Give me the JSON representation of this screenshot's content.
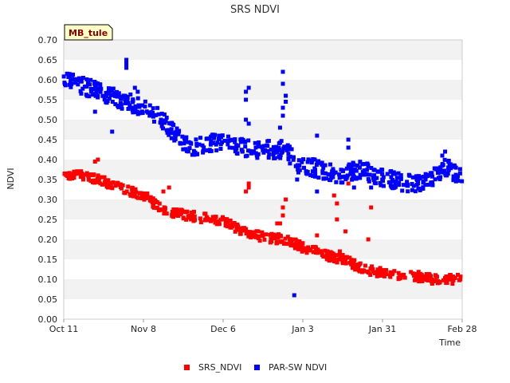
{
  "chart_data": {
    "type": "scatter",
    "title": "SRS NDVI",
    "site_tag": "MB_tule",
    "xlabel": "Time",
    "ylabel": "NDVI",
    "ylim": [
      0,
      0.7
    ],
    "xlim_days": [
      0,
      140
    ],
    "y_ticks": [
      "0.00",
      "0.05",
      "0.10",
      "0.15",
      "0.20",
      "0.25",
      "0.30",
      "0.35",
      "0.40",
      "0.45",
      "0.50",
      "0.55",
      "0.60",
      "0.65",
      "0.70"
    ],
    "x_ticks": [
      {
        "label": "Oct 11",
        "day": 0
      },
      {
        "label": "Nov 8",
        "day": 28
      },
      {
        "label": "Dec 6",
        "day": 56
      },
      {
        "label": "Jan 3",
        "day": 84
      },
      {
        "label": "Jan 31",
        "day": 112
      },
      {
        "label": "Feb 28",
        "day": 140
      }
    ],
    "grid": "horizontal alternating bands",
    "legend_position": "bottom-center",
    "series": [
      {
        "name": "SRS_NDVI",
        "color": "#ff0000",
        "trend": [
          [
            0,
            0.365
          ],
          [
            10,
            0.355
          ],
          [
            18,
            0.335
          ],
          [
            28,
            0.31
          ],
          [
            36,
            0.27
          ],
          [
            44,
            0.26
          ],
          [
            56,
            0.245
          ],
          [
            62,
            0.225
          ],
          [
            70,
            0.205
          ],
          [
            78,
            0.2
          ],
          [
            84,
            0.18
          ],
          [
            90,
            0.165
          ],
          [
            98,
            0.15
          ],
          [
            106,
            0.125
          ],
          [
            112,
            0.115
          ],
          [
            122,
            0.11
          ],
          [
            130,
            0.1
          ],
          [
            140,
            0.1
          ]
        ],
        "outliers": [
          [
            11,
            0.395
          ],
          [
            12,
            0.4
          ],
          [
            35,
            0.32
          ],
          [
            37,
            0.33
          ],
          [
            64,
            0.32
          ],
          [
            65,
            0.33
          ],
          [
            65,
            0.34
          ],
          [
            75,
            0.24
          ],
          [
            76,
            0.24
          ],
          [
            77,
            0.26
          ],
          [
            77,
            0.28
          ],
          [
            78,
            0.3
          ],
          [
            89,
            0.21
          ],
          [
            95,
            0.31
          ],
          [
            96,
            0.29
          ],
          [
            96,
            0.25
          ],
          [
            97,
            0.17
          ],
          [
            99,
            0.22
          ],
          [
            107,
            0.2
          ],
          [
            108,
            0.28
          ],
          [
            100,
            0.34
          ]
        ]
      },
      {
        "name": "PAR-SW NDVI",
        "color": "#0000ff",
        "trend": [
          [
            0,
            0.61
          ],
          [
            6,
            0.585
          ],
          [
            12,
            0.575
          ],
          [
            18,
            0.555
          ],
          [
            26,
            0.535
          ],
          [
            34,
            0.505
          ],
          [
            38,
            0.47
          ],
          [
            44,
            0.43
          ],
          [
            50,
            0.44
          ],
          [
            56,
            0.445
          ],
          [
            62,
            0.43
          ],
          [
            70,
            0.425
          ],
          [
            78,
            0.425
          ],
          [
            82,
            0.39
          ],
          [
            88,
            0.38
          ],
          [
            96,
            0.36
          ],
          [
            104,
            0.375
          ],
          [
            112,
            0.355
          ],
          [
            120,
            0.34
          ],
          [
            128,
            0.345
          ],
          [
            134,
            0.38
          ],
          [
            140,
            0.36
          ]
        ],
        "outliers": [
          [
            11,
            0.52
          ],
          [
            17,
            0.47
          ],
          [
            22,
            0.64
          ],
          [
            22,
            0.65
          ],
          [
            22,
            0.63
          ],
          [
            25,
            0.58
          ],
          [
            26,
            0.57
          ],
          [
            64,
            0.57
          ],
          [
            65,
            0.58
          ],
          [
            64,
            0.55
          ],
          [
            64,
            0.5
          ],
          [
            65,
            0.49
          ],
          [
            77,
            0.62
          ],
          [
            77,
            0.59
          ],
          [
            77,
            0.53
          ],
          [
            77,
            0.51
          ],
          [
            76,
            0.48
          ],
          [
            78,
            0.56
          ],
          [
            78,
            0.545
          ],
          [
            82,
            0.35
          ],
          [
            89,
            0.46
          ],
          [
            89,
            0.32
          ],
          [
            100,
            0.45
          ],
          [
            100,
            0.43
          ],
          [
            102,
            0.33
          ],
          [
            108,
            0.33
          ],
          [
            133,
            0.41
          ],
          [
            134,
            0.42
          ],
          [
            81,
            0.06
          ]
        ]
      }
    ]
  }
}
